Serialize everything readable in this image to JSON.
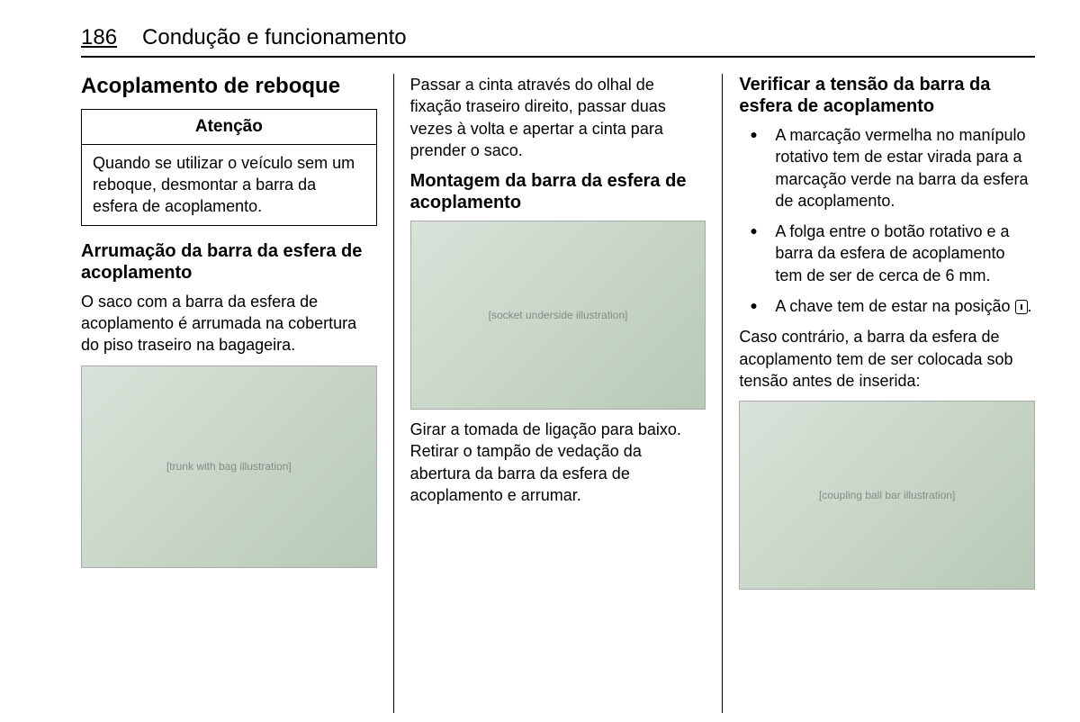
{
  "header": {
    "page_number": "186",
    "section_title": "Condução e funcionamento"
  },
  "col1": {
    "title": "Acoplamento de reboque",
    "caution_title": "Atenção",
    "caution_body": "Quando se utilizar o veículo sem um reboque, desmontar a barra da esfera de acoplamento.",
    "subtitle": "Arrumação da barra da esfera de acoplamento",
    "p1": "O saco com a barra da esfera de acoplamento é arrumada na cobertura do piso traseiro na bagageira.",
    "img_alt": "[trunk with bag illustration]"
  },
  "col2": {
    "p1": "Passar a cinta através do olhal de fixação traseiro direito, passar duas vezes à volta e apertar a cinta para prender o saco.",
    "subtitle": "Montagem da barra da esfera de acoplamento",
    "img_alt": "[socket underside illustration]",
    "p2": "Girar a tomada de ligação para baixo. Retirar o tampão de vedação da abertura da barra da esfera de acoplamento e arrumar."
  },
  "col3": {
    "subtitle": "Verificar a tensão da barra da esfera de acoplamento",
    "b1": "A marcação vermelha no manípulo rotativo tem de estar virada para a marcação verde na barra da esfera de acoplamento.",
    "b2": "A folga entre o botão rotativo e a barra da esfera de acoplamento tem de ser de cerca de 6 mm.",
    "b3_pre": "A chave tem de estar na posição ",
    "b3_post": ".",
    "p1": "Caso contrário, a barra da esfera de acoplamento tem de ser colocada sob tensão antes de inserida:",
    "img_alt": "[coupling ball bar illustration]"
  }
}
